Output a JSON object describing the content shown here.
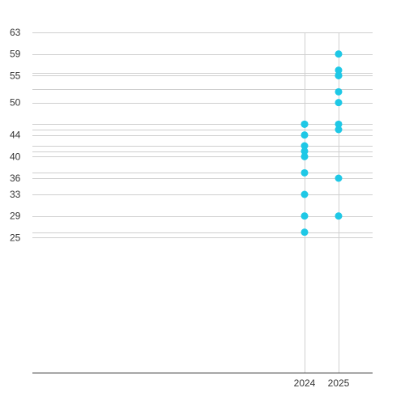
{
  "chart_data": {
    "type": "scatter",
    "title": "",
    "xlabel": "",
    "ylabel": "",
    "x_categories": [
      "2024",
      "2025"
    ],
    "y_tick_labels": [
      {
        "value": 63,
        "label": "63"
      },
      {
        "value": 59,
        "label": "59"
      },
      {
        "value": 55,
        "label": "55"
      },
      {
        "value": 50,
        "label": "50"
      },
      {
        "value": 44,
        "label": "44"
      },
      {
        "value": 40,
        "label": "40"
      },
      {
        "value": 36,
        "label": "36"
      },
      {
        "value": 33,
        "label": "33"
      },
      {
        "value": 29,
        "label": "29"
      },
      {
        "value": 25,
        "label": "25"
      }
    ],
    "y_gridlines": [
      63,
      59,
      55.5,
      55,
      52.5,
      50,
      46,
      45,
      44,
      42,
      41,
      40,
      37,
      36,
      33,
      29,
      26,
      25
    ],
    "ylim": [
      0,
      63
    ],
    "grid": true,
    "series": [
      {
        "x": [
          "2024",
          "2024",
          "2024",
          "2024",
          "2024",
          "2024",
          "2024",
          "2024",
          "2024",
          "2024",
          "2025",
          "2025",
          "2025",
          "2025",
          "2025",
          "2025",
          "2025",
          "2025",
          "2025",
          "2025"
        ],
        "y": [
          46,
          44,
          42,
          41,
          40,
          37,
          33,
          29,
          26,
          46,
          59,
          56,
          55,
          52,
          50,
          46,
          45,
          36,
          29,
          55
        ]
      }
    ],
    "colors": {
      "point": "#1ec8e6",
      "grid": "#cfcfcf",
      "axis": "#333333",
      "text": "#333333"
    }
  }
}
